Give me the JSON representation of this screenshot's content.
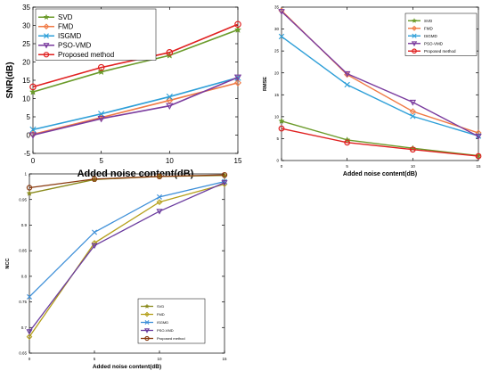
{
  "chart_data": [
    {
      "type": "line",
      "xlabel": "Added noise content(dB)",
      "ylabel": "SNR(dB)",
      "x": [
        0,
        5,
        10,
        15
      ],
      "xticks": [
        0,
        5,
        10,
        15
      ],
      "yticks": [
        -5,
        0,
        5,
        10,
        15,
        20,
        25,
        30,
        35
      ],
      "xlim": [
        0,
        15
      ],
      "ylim": [
        -5,
        35
      ],
      "legend_position": "top-left",
      "series": [
        {
          "name": "SVD",
          "color": "#6b9b2a",
          "marker": "star",
          "values": [
            11.8,
            17.3,
            21.8,
            28.8
          ]
        },
        {
          "name": "FMD",
          "color": "#f07a45",
          "marker": "diamond",
          "values": [
            0.2,
            4.8,
            9.5,
            14.3
          ]
        },
        {
          "name": "ISGMD",
          "color": "#2e9fd8",
          "marker": "x",
          "values": [
            1.5,
            5.8,
            10.5,
            15.7
          ]
        },
        {
          "name": "PSO-VMD",
          "color": "#7a3b9e",
          "marker": "triangle-down",
          "values": [
            0.0,
            4.5,
            8.0,
            15.8
          ]
        },
        {
          "name": "Proposed method",
          "color": "#e02020",
          "marker": "circle",
          "values": [
            13.2,
            18.5,
            22.6,
            30.3
          ]
        }
      ]
    },
    {
      "type": "line",
      "xlabel": "Added noise content(dB)",
      "ylabel": "RMSE",
      "x": [
        0,
        5,
        10,
        15
      ],
      "xticks": [
        0,
        5,
        10,
        15
      ],
      "yticks": [
        0,
        5,
        10,
        15,
        20,
        25,
        30,
        35
      ],
      "xlim": [
        0,
        15
      ],
      "ylim": [
        0,
        35
      ],
      "legend_position": "top-right",
      "series": [
        {
          "name": "SVD",
          "color": "#6b9b2a",
          "marker": "star",
          "values": [
            9.0,
            4.7,
            2.8,
            1.1
          ]
        },
        {
          "name": "FMD",
          "color": "#f07a45",
          "marker": "diamond",
          "values": [
            34.2,
            19.6,
            11.2,
            6.3
          ]
        },
        {
          "name": "ISGMD",
          "color": "#2e9fd8",
          "marker": "x",
          "values": [
            28.3,
            17.3,
            10.1,
            5.6
          ]
        },
        {
          "name": "PSO-VMD",
          "color": "#7a3b9e",
          "marker": "triangle-down",
          "values": [
            34.0,
            19.8,
            13.3,
            5.5
          ]
        },
        {
          "name": "Proposed method",
          "color": "#e02020",
          "marker": "circle",
          "values": [
            7.3,
            4.1,
            2.5,
            1.0
          ]
        }
      ]
    },
    {
      "type": "line",
      "xlabel": "Added noise content(dB)",
      "ylabel": "NCC",
      "x": [
        0,
        5,
        10,
        15
      ],
      "xticks": [
        0,
        5,
        10,
        15
      ],
      "yticks": [
        0.65,
        0.7,
        0.75,
        0.8,
        0.85,
        0.9,
        0.95,
        1
      ],
      "xlim": [
        0,
        15
      ],
      "ylim": [
        0.65,
        1.0
      ],
      "legend_position": "bottom-right",
      "series": [
        {
          "name": "SVD",
          "color": "#8a8a1c",
          "marker": "star",
          "values": [
            0.962,
            0.989,
            0.995,
            0.997
          ]
        },
        {
          "name": "FMD",
          "color": "#b5a01c",
          "marker": "diamond",
          "values": [
            0.682,
            0.865,
            0.945,
            0.98
          ]
        },
        {
          "name": "ISGMD",
          "color": "#3d8fd8",
          "marker": "x",
          "values": [
            0.76,
            0.886,
            0.955,
            0.985
          ]
        },
        {
          "name": "PSO-VMD",
          "color": "#6a3b9e",
          "marker": "triangle-down",
          "values": [
            0.692,
            0.86,
            0.927,
            0.983
          ]
        },
        {
          "name": "Proposed method",
          "color": "#8a3b10",
          "marker": "circle",
          "values": [
            0.973,
            0.99,
            0.995,
            0.998
          ]
        }
      ]
    }
  ]
}
